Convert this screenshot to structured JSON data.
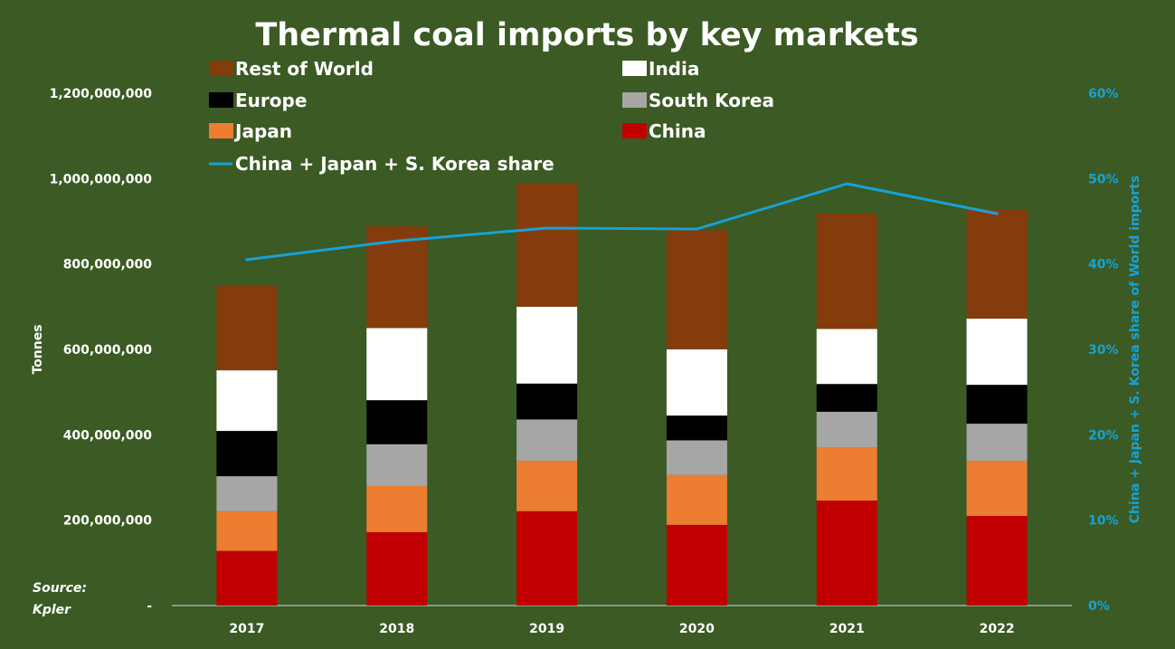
{
  "chart_data": {
    "type": "bar",
    "stacked": true,
    "title": "Thermal coal imports by key markets",
    "categories": [
      "2017",
      "2018",
      "2019",
      "2020",
      "2021",
      "2022"
    ],
    "series": [
      {
        "name": "China",
        "color": "#c00000",
        "values": [
          128000000,
          172000000,
          221000000,
          189000000,
          246000000,
          210000000
        ]
      },
      {
        "name": "Japan",
        "color": "#ed7d31",
        "values": [
          93000000,
          108000000,
          118000000,
          117000000,
          125000000,
          129000000
        ]
      },
      {
        "name": "South Korea",
        "color": "#a6a6a6",
        "values": [
          82000000,
          98000000,
          97000000,
          81000000,
          83000000,
          87000000
        ]
      },
      {
        "name": "Europe",
        "color": "#000000",
        "values": [
          106000000,
          103000000,
          84000000,
          58000000,
          65000000,
          91000000
        ]
      },
      {
        "name": "India",
        "color": "#ffffff",
        "values": [
          142000000,
          169000000,
          180000000,
          155000000,
          129000000,
          155000000
        ]
      },
      {
        "name": "Rest of World",
        "color": "#843c0c",
        "values": [
          198000000,
          238000000,
          290000000,
          279000000,
          270000000,
          256000000
        ]
      }
    ],
    "line_series": {
      "name": "China + Japan + S. Korea share",
      "color": "#17a2d6",
      "axis": "right",
      "values": [
        40.5,
        42.7,
        44.2,
        44.1,
        49.4,
        45.9
      ]
    },
    "legend_order": [
      "Rest of World",
      "India",
      "Europe",
      "South Korea",
      "Japan",
      "China",
      "China + Japan + S. Korea share"
    ],
    "ylabel": "Tonnes",
    "ylim": [
      0,
      1200000000
    ],
    "yticks": [
      0,
      200000000,
      400000000,
      600000000,
      800000000,
      1000000000,
      1200000000
    ],
    "ytick_labels": [
      "-",
      "200,000,000",
      "400,000,000",
      "600,000,000",
      "800,000,000",
      "1,000,000,000",
      "1,200,000,000"
    ],
    "y2label": "China + Japan + S. Korea share of World imports",
    "y2lim": [
      0,
      60
    ],
    "y2ticks": [
      0,
      10,
      20,
      30,
      40,
      50,
      60
    ],
    "y2tick_labels": [
      "0%",
      "10%",
      "20%",
      "30%",
      "40%",
      "50%",
      "60%"
    ],
    "source": [
      "Source:",
      "Kpler"
    ],
    "legend_position": "top",
    "grid": false
  }
}
